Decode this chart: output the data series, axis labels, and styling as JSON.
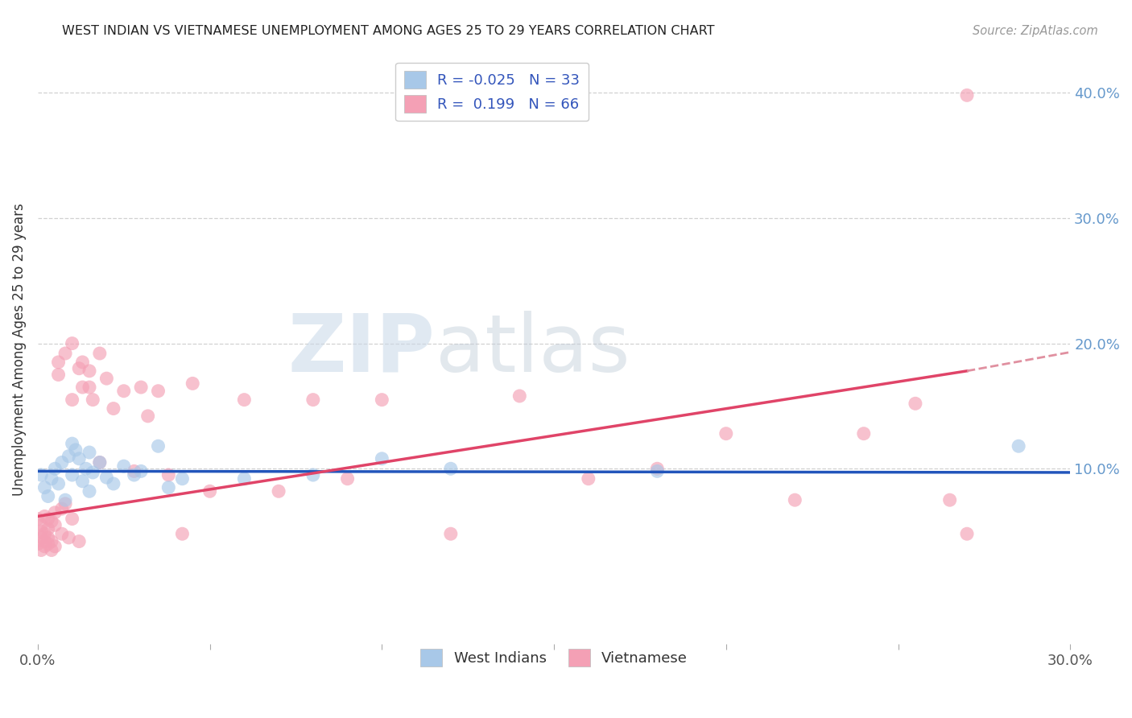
{
  "title": "WEST INDIAN VS VIETNAMESE UNEMPLOYMENT AMONG AGES 25 TO 29 YEARS CORRELATION CHART",
  "source": "Source: ZipAtlas.com",
  "ylabel": "Unemployment Among Ages 25 to 29 years",
  "xlim": [
    0.0,
    0.3
  ],
  "ylim": [
    -0.04,
    0.43
  ],
  "x_ticks": [
    0.0,
    0.05,
    0.1,
    0.15,
    0.2,
    0.25,
    0.3
  ],
  "y_ticks_right": [
    0.1,
    0.2,
    0.3,
    0.4
  ],
  "background_color": "#ffffff",
  "grid_color": "#cccccc",
  "watermark_zip": "ZIP",
  "watermark_atlas": "atlas",
  "color_west_indian": "#a8c8e8",
  "color_vietnamese": "#f4a0b5",
  "color_line_west_indian": "#2255bb",
  "color_line_vietnamese": "#e04468",
  "color_dashed_line": "#e090a0",
  "R_west_indian": -0.025,
  "N_west_indian": 33,
  "R_vietnamese": 0.199,
  "N_vietnamese": 66,
  "wi_x": [
    0.001,
    0.002,
    0.003,
    0.004,
    0.005,
    0.006,
    0.007,
    0.008,
    0.009,
    0.01,
    0.01,
    0.011,
    0.012,
    0.013,
    0.014,
    0.015,
    0.015,
    0.016,
    0.018,
    0.02,
    0.022,
    0.025,
    0.028,
    0.03,
    0.035,
    0.038,
    0.042,
    0.06,
    0.08,
    0.1,
    0.12,
    0.18,
    0.285
  ],
  "wi_y": [
    0.095,
    0.085,
    0.078,
    0.092,
    0.1,
    0.088,
    0.105,
    0.075,
    0.11,
    0.12,
    0.095,
    0.115,
    0.108,
    0.09,
    0.1,
    0.113,
    0.082,
    0.097,
    0.105,
    0.093,
    0.088,
    0.102,
    0.095,
    0.098,
    0.118,
    0.085,
    0.092,
    0.092,
    0.095,
    0.108,
    0.1,
    0.098,
    0.118
  ],
  "vn_x": [
    0.0,
    0.0,
    0.001,
    0.001,
    0.001,
    0.001,
    0.002,
    0.002,
    0.002,
    0.002,
    0.003,
    0.003,
    0.003,
    0.003,
    0.004,
    0.004,
    0.004,
    0.005,
    0.005,
    0.005,
    0.006,
    0.006,
    0.007,
    0.007,
    0.008,
    0.008,
    0.009,
    0.01,
    0.01,
    0.01,
    0.012,
    0.012,
    0.013,
    0.013,
    0.015,
    0.015,
    0.016,
    0.018,
    0.018,
    0.02,
    0.022,
    0.025,
    0.028,
    0.03,
    0.032,
    0.035,
    0.038,
    0.042,
    0.045,
    0.05,
    0.06,
    0.07,
    0.08,
    0.09,
    0.1,
    0.12,
    0.14,
    0.16,
    0.18,
    0.2,
    0.22,
    0.24,
    0.255,
    0.265,
    0.27,
    0.27
  ],
  "vn_y": [
    0.06,
    0.04,
    0.055,
    0.045,
    0.05,
    0.035,
    0.048,
    0.062,
    0.042,
    0.038,
    0.052,
    0.06,
    0.045,
    0.04,
    0.058,
    0.035,
    0.042,
    0.065,
    0.038,
    0.055,
    0.175,
    0.185,
    0.068,
    0.048,
    0.192,
    0.072,
    0.045,
    0.2,
    0.155,
    0.06,
    0.18,
    0.042,
    0.185,
    0.165,
    0.165,
    0.178,
    0.155,
    0.192,
    0.105,
    0.172,
    0.148,
    0.162,
    0.098,
    0.165,
    0.142,
    0.162,
    0.095,
    0.048,
    0.168,
    0.082,
    0.155,
    0.082,
    0.155,
    0.092,
    0.155,
    0.048,
    0.158,
    0.092,
    0.1,
    0.128,
    0.075,
    0.128,
    0.152,
    0.075,
    0.048,
    0.398
  ],
  "vn_line_end_x": 0.27,
  "wi_line_y_at_0": 0.098,
  "wi_line_y_at_30": 0.097,
  "vn_line_y_at_0": 0.062,
  "vn_line_y_at_27": 0.178,
  "vn_line_y_at_30": 0.193
}
